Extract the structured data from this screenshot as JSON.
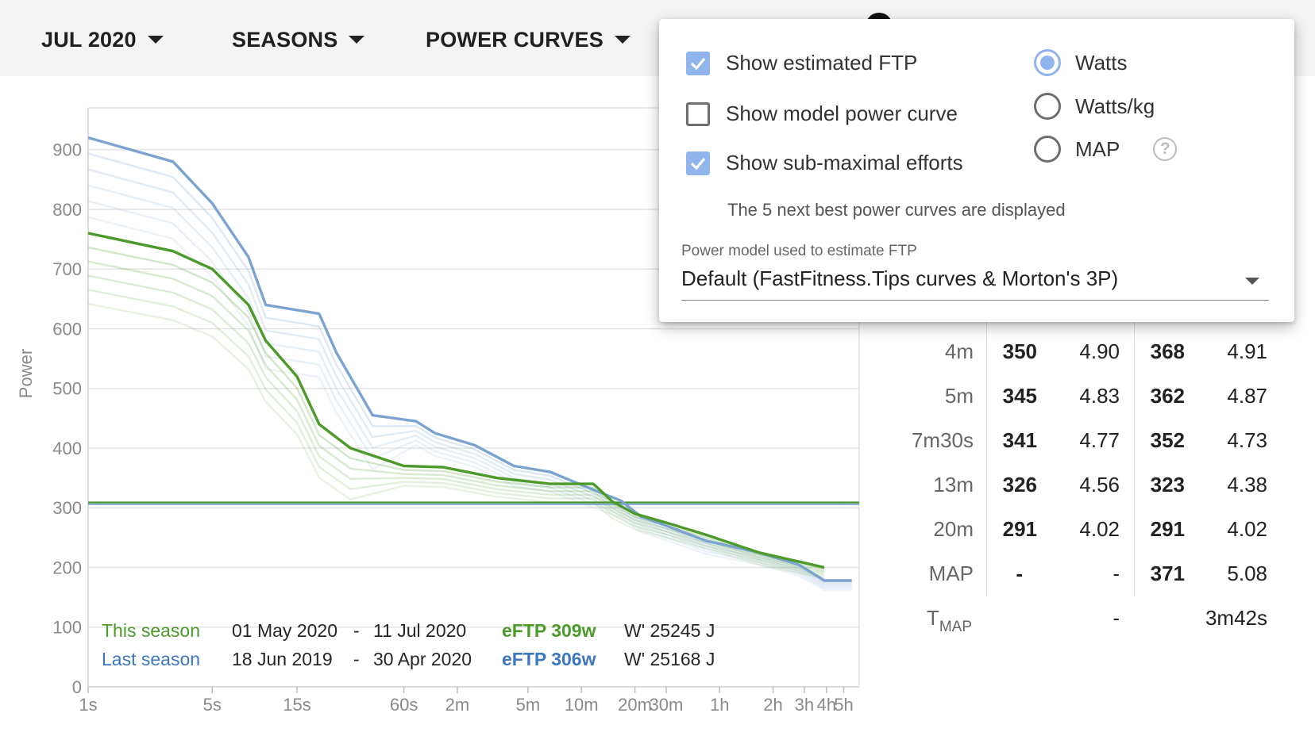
{
  "toolbar": {
    "period_label": "JUL 2020",
    "seasons_label": "SEASONS",
    "view_label": "POWER CURVES"
  },
  "options_popup": {
    "show_eftp_label": "Show estimated FTP",
    "show_eftp_checked": true,
    "show_model_label": "Show model power curve",
    "show_model_checked": false,
    "show_submax_label": "Show sub-maximal efforts",
    "show_submax_checked": true,
    "submax_hint": "The 5 next best power curves are displayed",
    "units": [
      {
        "label": "Watts",
        "selected": true
      },
      {
        "label": "Watts/kg",
        "selected": false
      },
      {
        "label": "MAP",
        "selected": false
      }
    ],
    "help_icon": "question-circle-icon",
    "model_select_label": "Power model used to estimate FTP",
    "model_select_value": "Default (FastFitness.Tips curves & Morton's 3P)"
  },
  "legend": {
    "this_season": {
      "name": "This season",
      "start": "01 May 2020",
      "sep": "-",
      "end": "11 Jul 2020",
      "eftp": "eFTP 309w",
      "wprime": "W' 25245 J"
    },
    "last_season": {
      "name": "Last season",
      "start": "18 Jun 2019",
      "sep": "-",
      "end": "30 Apr 2020",
      "eftp": "eFTP 306w",
      "wprime": "W' 25168 J"
    }
  },
  "colors": {
    "this_season": "#4c9a2a",
    "last_season": "#7ba3cf",
    "checkbox_accent": "#90b4ec"
  },
  "chart_data": {
    "type": "line",
    "xscale": "log",
    "ylabel": "Power",
    "yticks": [
      "0",
      "100",
      "200",
      "300",
      "400",
      "500",
      "600",
      "700",
      "800",
      "900"
    ],
    "ylim": [
      0,
      970
    ],
    "xticks": [
      {
        "label": "1s",
        "sec": 1
      },
      {
        "label": "5s",
        "sec": 5
      },
      {
        "label": "15s",
        "sec": 15
      },
      {
        "label": "60s",
        "sec": 60
      },
      {
        "label": "2m",
        "sec": 120
      },
      {
        "label": "5m",
        "sec": 300
      },
      {
        "label": "10m",
        "sec": 600
      },
      {
        "label": "20m",
        "sec": 1200
      },
      {
        "label": "30m",
        "sec": 1800
      },
      {
        "label": "1h",
        "sec": 3600
      },
      {
        "label": "2h",
        "sec": 7200
      },
      {
        "label": "3h",
        "sec": 10800
      },
      {
        "label": "4h",
        "sec": 14400
      },
      {
        "label": "5h",
        "sec": 18000
      }
    ],
    "xlim_sec": [
      1,
      22000
    ],
    "grid": true,
    "eftp_lines": [
      {
        "series": "This season",
        "value": 309
      },
      {
        "series": "Last season",
        "value": 306
      }
    ],
    "series": [
      {
        "name": "Last season",
        "points": [
          [
            1,
            920
          ],
          [
            3,
            880
          ],
          [
            5,
            810
          ],
          [
            8,
            720
          ],
          [
            10,
            640
          ],
          [
            20,
            625
          ],
          [
            25,
            560
          ],
          [
            40,
            455
          ],
          [
            70,
            445
          ],
          [
            90,
            425
          ],
          [
            150,
            405
          ],
          [
            250,
            370
          ],
          [
            400,
            360
          ],
          [
            700,
            330
          ],
          [
            1000,
            312
          ],
          [
            1300,
            285
          ],
          [
            1800,
            270
          ],
          [
            3000,
            245
          ],
          [
            6000,
            225
          ],
          [
            10000,
            205
          ],
          [
            14000,
            178
          ],
          [
            20000,
            178
          ]
        ]
      },
      {
        "name": "This season",
        "points": [
          [
            1,
            760
          ],
          [
            3,
            730
          ],
          [
            5,
            700
          ],
          [
            8,
            640
          ],
          [
            10,
            580
          ],
          [
            15,
            520
          ],
          [
            20,
            440
          ],
          [
            30,
            400
          ],
          [
            60,
            370
          ],
          [
            100,
            368
          ],
          [
            200,
            350
          ],
          [
            400,
            340
          ],
          [
            700,
            340
          ],
          [
            900,
            310
          ],
          [
            1200,
            290
          ],
          [
            1800,
            275
          ],
          [
            3000,
            255
          ],
          [
            6000,
            225
          ],
          [
            10000,
            210
          ],
          [
            14000,
            200
          ]
        ]
      }
    ],
    "submaximal_curves_count": 5
  },
  "stats_table": {
    "rows": [
      {
        "duration": "4m",
        "this_w": "350",
        "this_wkg": "4.90",
        "last_w": "368",
        "last_wkg": "4.91"
      },
      {
        "duration": "5m",
        "this_w": "345",
        "this_wkg": "4.83",
        "last_w": "362",
        "last_wkg": "4.87"
      },
      {
        "duration": "7m30s",
        "this_w": "341",
        "this_wkg": "4.77",
        "last_w": "352",
        "last_wkg": "4.73"
      },
      {
        "duration": "13m",
        "this_w": "326",
        "this_wkg": "4.56",
        "last_w": "323",
        "last_wkg": "4.38"
      },
      {
        "duration": "20m",
        "this_w": "291",
        "this_wkg": "4.02",
        "last_w": "291",
        "last_wkg": "4.02"
      },
      {
        "duration": "MAP",
        "this_w": "-",
        "this_wkg": "-",
        "last_w": "371",
        "last_wkg": "5.08"
      }
    ],
    "tmap": {
      "label": "T",
      "sub": "MAP",
      "this_value": "-",
      "last_value": "3m42s"
    }
  }
}
